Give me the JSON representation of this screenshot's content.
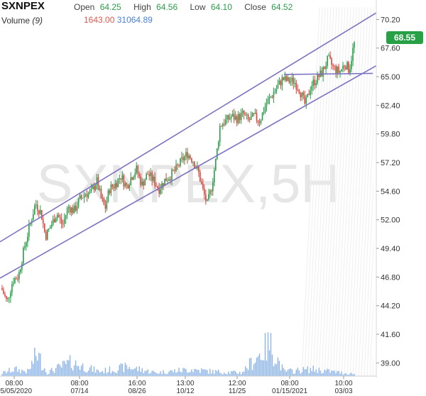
{
  "header": {
    "symbol": "SXNPEX",
    "open_label": "Open",
    "open": "64.25",
    "high_label": "High",
    "high": "64.56",
    "low_label": "Low",
    "low": "64.10",
    "close_label": "Close",
    "close": "64.52",
    "volume_label": "Volume",
    "volume_period": "(9)",
    "volume_value_1": "1643.00",
    "volume_value_2": "31064.89"
  },
  "watermark": "SXNPEX,5H",
  "last_price": "68.55",
  "colors": {
    "up": "#2a9d4a",
    "down": "#d9453b",
    "trendline": "#7b72c2",
    "volume": "#8cb4e8",
    "price_badge": "#27a046"
  },
  "chart_data": {
    "type": "candlestick",
    "title": "SXNPEX",
    "ylim": [
      37.8,
      71.0
    ],
    "y_ticks": [
      "70.20",
      "67.60",
      "65.00",
      "62.40",
      "59.80",
      "57.20",
      "54.60",
      "52.00",
      "49.40",
      "46.80",
      "44.20",
      "41.60",
      "39.00"
    ],
    "x_ticks": [
      {
        "time": "08:00",
        "date": "05/05/2020"
      },
      {
        "time": "08:00",
        "date": "07/14"
      },
      {
        "time": "16:00",
        "date": "08/26"
      },
      {
        "time": "13:00",
        "date": "10/12"
      },
      {
        "time": "12:00",
        "date": "11/25"
      },
      {
        "time": "08:00",
        "date": "01/15/2021"
      },
      {
        "time": "10:00",
        "date": "03/03"
      }
    ],
    "price_path": [
      {
        "x": 0,
        "y": 45.8
      },
      {
        "x": 8,
        "y": 44.5
      },
      {
        "x": 16,
        "y": 46.5
      },
      {
        "x": 24,
        "y": 46.9
      },
      {
        "x": 32,
        "y": 49.4
      },
      {
        "x": 40,
        "y": 51.5
      },
      {
        "x": 48,
        "y": 53.5
      },
      {
        "x": 56,
        "y": 52.6
      },
      {
        "x": 62,
        "y": 50.5
      },
      {
        "x": 70,
        "y": 51.5
      },
      {
        "x": 78,
        "y": 52.6
      },
      {
        "x": 86,
        "y": 51.5
      },
      {
        "x": 94,
        "y": 53.2
      },
      {
        "x": 102,
        "y": 52.8
      },
      {
        "x": 110,
        "y": 53.8
      },
      {
        "x": 118,
        "y": 54.4
      },
      {
        "x": 126,
        "y": 54.4
      },
      {
        "x": 134,
        "y": 55.6
      },
      {
        "x": 140,
        "y": 54.0
      },
      {
        "x": 146,
        "y": 53.0
      },
      {
        "x": 152,
        "y": 54.8
      },
      {
        "x": 160,
        "y": 55.2
      },
      {
        "x": 168,
        "y": 56.0
      },
      {
        "x": 176,
        "y": 55.0
      },
      {
        "x": 182,
        "y": 55.8
      },
      {
        "x": 190,
        "y": 56.6
      },
      {
        "x": 198,
        "y": 55.2
      },
      {
        "x": 206,
        "y": 56.2
      },
      {
        "x": 214,
        "y": 55.6
      },
      {
        "x": 222,
        "y": 54.8
      },
      {
        "x": 230,
        "y": 55.6
      },
      {
        "x": 238,
        "y": 56.0
      },
      {
        "x": 246,
        "y": 56.6
      },
      {
        "x": 254,
        "y": 57.4
      },
      {
        "x": 262,
        "y": 58.0
      },
      {
        "x": 270,
        "y": 57.4
      },
      {
        "x": 278,
        "y": 56.2
      },
      {
        "x": 284,
        "y": 54.6
      },
      {
        "x": 290,
        "y": 53.4
      },
      {
        "x": 296,
        "y": 55.0
      },
      {
        "x": 302,
        "y": 57.4
      },
      {
        "x": 308,
        "y": 60.6
      },
      {
        "x": 316,
        "y": 61.0
      },
      {
        "x": 324,
        "y": 61.4
      },
      {
        "x": 332,
        "y": 61.2
      },
      {
        "x": 340,
        "y": 61.6
      },
      {
        "x": 348,
        "y": 61.0
      },
      {
        "x": 356,
        "y": 61.4
      },
      {
        "x": 364,
        "y": 61.0
      },
      {
        "x": 372,
        "y": 62.4
      },
      {
        "x": 380,
        "y": 63.2
      },
      {
        "x": 388,
        "y": 64.0
      },
      {
        "x": 396,
        "y": 64.8
      },
      {
        "x": 404,
        "y": 64.6
      },
      {
        "x": 412,
        "y": 64.6
      },
      {
        "x": 420,
        "y": 63.8
      },
      {
        "x": 428,
        "y": 62.4
      },
      {
        "x": 436,
        "y": 64.2
      },
      {
        "x": 444,
        "y": 64.8
      },
      {
        "x": 452,
        "y": 65.4
      },
      {
        "x": 460,
        "y": 66.6
      },
      {
        "x": 468,
        "y": 65.8
      },
      {
        "x": 476,
        "y": 65.4
      },
      {
        "x": 484,
        "y": 66.2
      },
      {
        "x": 490,
        "y": 65.6
      },
      {
        "x": 496,
        "y": 67.8
      },
      {
        "x": 500,
        "y": 68.55
      }
    ],
    "volume_path": [
      {
        "x": 0,
        "y": 0.4
      },
      {
        "x": 20,
        "y": 1.2
      },
      {
        "x": 40,
        "y": 0.8
      },
      {
        "x": 52,
        "y": 4.0
      },
      {
        "x": 66,
        "y": 0.6
      },
      {
        "x": 100,
        "y": 2.4
      },
      {
        "x": 140,
        "y": 0.8
      },
      {
        "x": 180,
        "y": 1.6
      },
      {
        "x": 220,
        "y": 0.6
      },
      {
        "x": 270,
        "y": 1.2
      },
      {
        "x": 300,
        "y": 0.8
      },
      {
        "x": 340,
        "y": 0.6
      },
      {
        "x": 380,
        "y": 5.6
      },
      {
        "x": 400,
        "y": 0.8
      },
      {
        "x": 440,
        "y": 1.2
      },
      {
        "x": 480,
        "y": 0.6
      },
      {
        "x": 500,
        "y": 0.4
      }
    ],
    "trendlines": [
      {
        "from": [
          0,
          50.0
        ],
        "to": [
          530,
          70.8
        ]
      },
      {
        "from": [
          0,
          46.7
        ],
        "to": [
          530,
          66.0
        ]
      },
      {
        "from": [
          400,
          65.2
        ],
        "to": [
          525,
          65.3
        ]
      }
    ]
  }
}
